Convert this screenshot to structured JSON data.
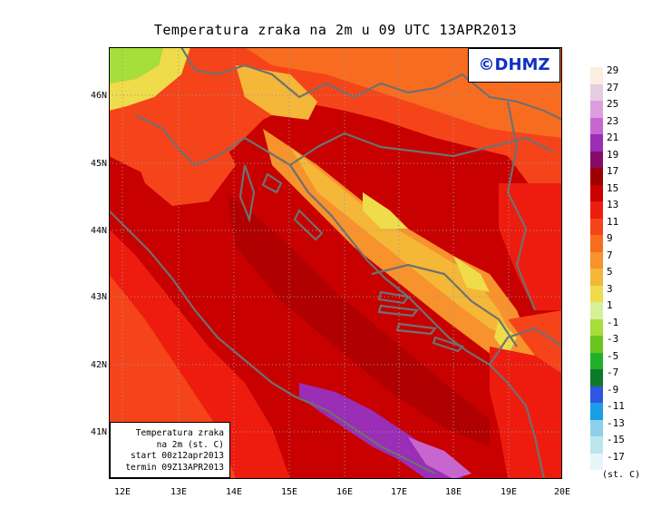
{
  "title": "Temperatura zraka na 2m u 09 UTC 13APR2013",
  "logo": "©DHMZ",
  "info_box": {
    "line1": "Temperatura zraka",
    "line2": "na 2m (st. C)",
    "line3": "start 00z12apr2013",
    "line4": "termin 09Z13APR2013"
  },
  "y_ticks": [
    "46N",
    "45N",
    "44N",
    "43N",
    "42N",
    "41N"
  ],
  "x_ticks": [
    "12E",
    "13E",
    "14E",
    "15E",
    "16E",
    "17E",
    "18E",
    "19E",
    "20E"
  ],
  "legend": {
    "unit": "(st. C)",
    "labels": [
      "29",
      "27",
      "25",
      "23",
      "21",
      "19",
      "17",
      "15",
      "13",
      "11",
      "9",
      "7",
      "5",
      "3",
      "1",
      "-1",
      "-3",
      "-5",
      "-7",
      "-9",
      "-11",
      "-13",
      "-15",
      "-17"
    ],
    "colors": [
      "#fbeee0",
      "#e6cde0",
      "#dc9ee0",
      "#c866d0",
      "#9a2eb6",
      "#880a68",
      "#9e0000",
      "#c80000",
      "#ee1c0e",
      "#f6441a",
      "#f86c20",
      "#f7922c",
      "#f4b738",
      "#eedc4a",
      "#d6f09a",
      "#a6de3a",
      "#6cc41e",
      "#22b02a",
      "#0c7a26",
      "#2e56e0",
      "#1a9ee8",
      "#8ed0ea",
      "#bce6ee",
      "#e6f6f8"
    ]
  }
}
